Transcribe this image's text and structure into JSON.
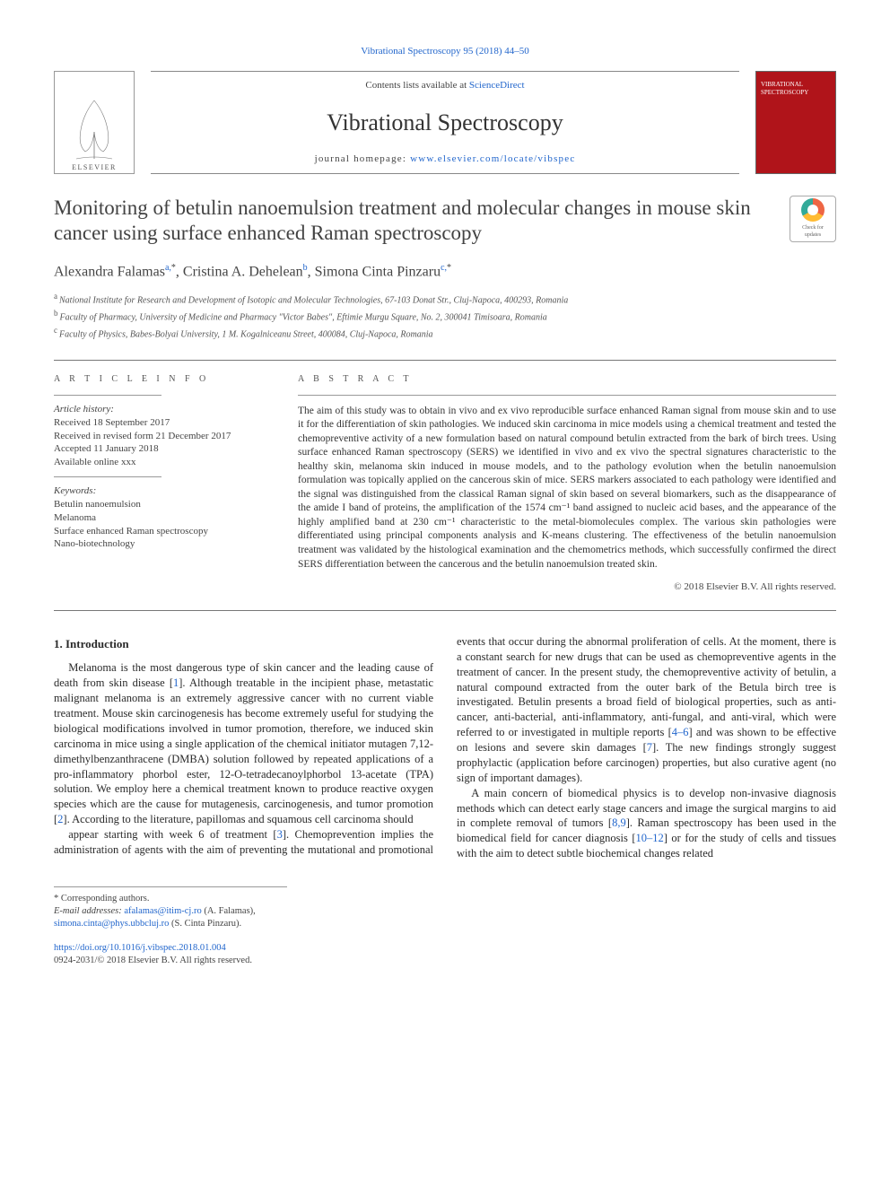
{
  "colors": {
    "link": "#2266cc",
    "text": "#2a2a2a",
    "cover_bg": "#b0141a"
  },
  "top_link": "Vibrational Spectroscopy 95 (2018) 44–50",
  "masthead": {
    "contents_prefix": "Contents lists available at ",
    "contents_link": "ScienceDirect",
    "journal": "Vibrational Spectroscopy",
    "homepage_prefix": "journal homepage: ",
    "homepage_link": "www.elsevier.com/locate/vibspec",
    "publisher_word": "ELSEVIER",
    "cover_line1": "VIBRATIONAL",
    "cover_line2": "SPECTROSCOPY"
  },
  "crossmark": {
    "line1": "Check for",
    "line2": "updates"
  },
  "title": "Monitoring of betulin nanoemulsion treatment and molecular changes in mouse skin cancer using surface enhanced Raman spectroscopy",
  "authors": [
    {
      "name": "Alexandra Falamas",
      "affs": "a",
      "corresponding": true
    },
    {
      "name": "Cristina A. Dehelean",
      "affs": "b",
      "corresponding": false
    },
    {
      "name": "Simona Cinta Pinzaru",
      "affs": "c",
      "corresponding": true
    }
  ],
  "affiliations": [
    {
      "key": "a",
      "text": "National Institute for Research and Development of Isotopic and Molecular Technologies, 67-103 Donat Str., Cluj-Napoca, 400293, Romania"
    },
    {
      "key": "b",
      "text": "Faculty of Pharmacy, University of Medicine and Pharmacy \"Victor Babes\", Eftimie Murgu Square, No. 2, 300041 Timisoara, Romania"
    },
    {
      "key": "c",
      "text": "Faculty of Physics, Babes-Bolyai University, 1 M. Kogalniceanu Street, 400084, Cluj-Napoca, Romania"
    }
  ],
  "article_info": {
    "heading": "A R T I C L E   I N F O",
    "history_label": "Article history:",
    "history": [
      "Received 18 September 2017",
      "Received in revised form 21 December 2017",
      "Accepted 11 January 2018",
      "Available online xxx"
    ],
    "keywords_label": "Keywords:",
    "keywords": [
      "Betulin nanoemulsion",
      "Melanoma",
      "Surface enhanced Raman spectroscopy",
      "Nano-biotechnology"
    ]
  },
  "abstract": {
    "heading": "A B S T R A C T",
    "text": "The aim of this study was to obtain in vivo and ex vivo reproducible surface enhanced Raman signal from mouse skin and to use it for the differentiation of skin pathologies. We induced skin carcinoma in mice models using a chemical treatment and tested the chemopreventive activity of a new formulation based on natural compound betulin extracted from the bark of birch trees. Using surface enhanced Raman spectroscopy (SERS) we identified in vivo and ex vivo the spectral signatures characteristic to the healthy skin, melanoma skin induced in mouse models, and to the pathology evolution when the betulin nanoemulsion formulation was topically applied on the cancerous skin of mice. SERS markers associated to each pathology were identified and the signal was distinguished from the classical Raman signal of skin based on several biomarkers, such as the disappearance of the amide I band of proteins, the amplification of the 1574 cm⁻¹ band assigned to nucleic acid bases, and the appearance of the highly amplified band at 230 cm⁻¹ characteristic to the metal-biomolecules complex. The various skin pathologies were differentiated using principal components analysis and K-means clustering. The effectiveness of the betulin nanoemulsion treatment was validated by the histological examination and the chemometrics methods, which successfully confirmed the direct SERS differentiation between the cancerous and the betulin nanoemulsion treated skin.",
    "copyright": "© 2018 Elsevier B.V. All rights reserved."
  },
  "body": {
    "section_heading": "1. Introduction",
    "para1": "Melanoma is the most dangerous type of skin cancer and the leading cause of death from skin disease [1]. Although treatable in the incipient phase, metastatic malignant melanoma is an extremely aggressive cancer with no current viable treatment. Mouse skin carcinogenesis has become extremely useful for studying the biological modifications involved in tumor promotion, therefore, we induced skin carcinoma in mice using a single application of the chemical initiator mutagen 7,12-dimethylbenzanthracene (DMBA) solution followed by repeated applications of a pro-inflammatory phorbol ester, 12-O-tetradecanoylphorbol 13-acetate (TPA) solution. We employ here a chemical treatment known to produce reactive oxygen species which are the cause for mutagenesis, carcinogenesis, and tumor promotion [2]. According to the literature, papillomas and squamous cell carcinoma should",
    "para2": "appear starting with week 6 of treatment [3]. Chemoprevention implies the administration of agents with the aim of preventing the mutational and promotional events that occur during the abnormal proliferation of cells. At the moment, there is a constant search for new drugs that can be used as chemopreventive agents in the treatment of cancer. In the present study, the chemopreventive activity of betulin, a natural compound extracted from the outer bark of the Betula birch tree is investigated. Betulin presents a broad field of biological properties, such as anti-cancer, anti-bacterial, anti-inflammatory, anti-fungal, and anti-viral, which were referred to or investigated in multiple reports [4–6] and was shown to be effective on lesions and severe skin damages [7]. The new findings strongly suggest prophylactic (application before carcinogen) properties, but also curative agent (no sign of important damages).",
    "para3": "A main concern of biomedical physics is to develop non-invasive diagnosis methods which can detect early stage cancers and image the surgical margins to aid in complete removal of tumors [8,9]. Raman spectroscopy has been used in the biomedical field for cancer diagnosis [10–12] or for the study of cells and tissues with the aim to detect subtle biochemical changes related"
  },
  "footnotes": {
    "corr_label": "* Corresponding authors.",
    "email_label": "E-mail addresses: ",
    "emails": [
      {
        "addr": "afalamas@itim-cj.ro",
        "person": " (A. Falamas), "
      },
      {
        "addr": "simona.cinta@phys.ubbcluj.ro",
        "person": " (S. Cinta Pinzaru)."
      }
    ]
  },
  "doi": {
    "link": "https://doi.org/10.1016/j.vibspec.2018.01.004",
    "line2": "0924-2031/© 2018 Elsevier B.V. All rights reserved."
  }
}
